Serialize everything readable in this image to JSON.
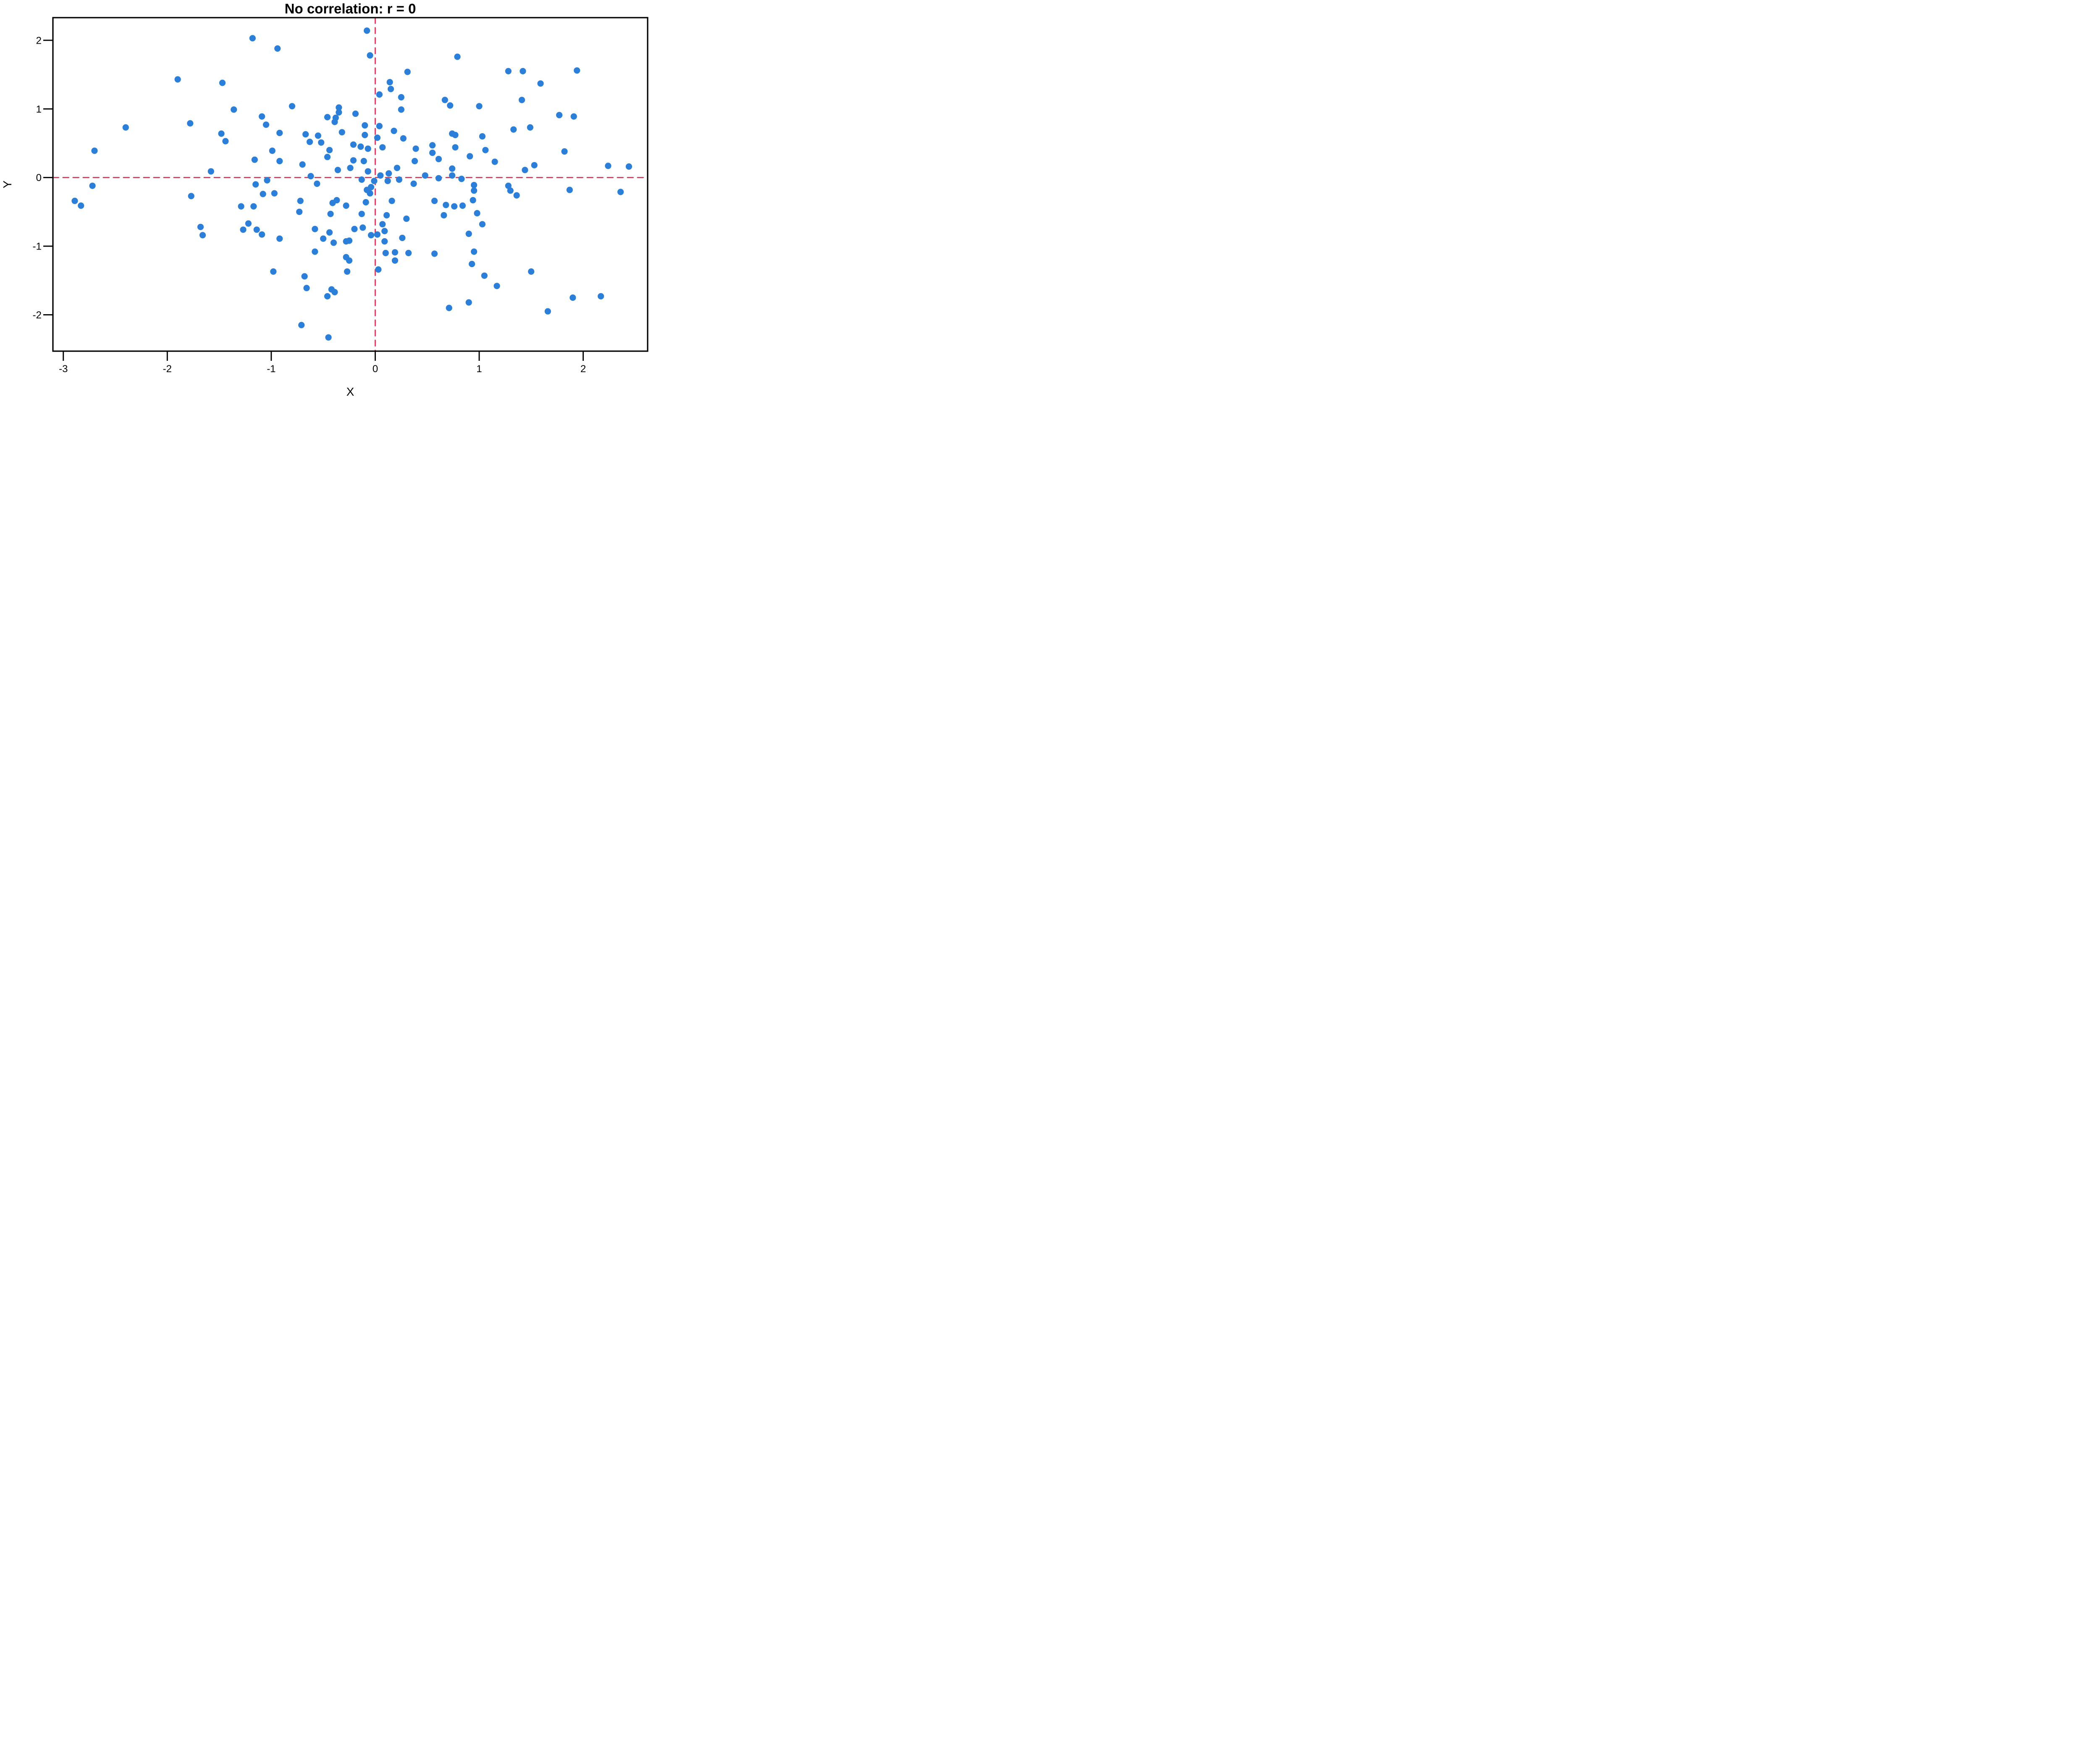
{
  "figure": {
    "background": "#ffffff",
    "text_color": "#000000"
  },
  "chart_data": {
    "type": "scatter",
    "title": "No correlation: r = 0",
    "xlabel": "X",
    "ylabel": "Y",
    "xlim": [
      -3.1,
      2.62
    ],
    "ylim": [
      -2.53,
      2.33
    ],
    "x_ticks": [
      -3,
      -2,
      -1,
      0,
      1,
      2
    ],
    "y_ticks": [
      2,
      1,
      0,
      -1,
      -2
    ],
    "grid": false,
    "legend": null,
    "point_color": "#2b7fd8",
    "point_radius": 7.6,
    "axis_color": "#000000",
    "reference_lines": {
      "vertical_x": 0,
      "horizontal_y": 0,
      "style": "dashed",
      "color": "#d93a5f"
    },
    "points": [
      [
        -1.18,
        2.03
      ],
      [
        -0.94,
        1.88
      ],
      [
        -1.9,
        1.43
      ],
      [
        -1.47,
        1.38
      ],
      [
        -2.4,
        0.73
      ],
      [
        -1.36,
        0.99
      ],
      [
        -1.78,
        0.79
      ],
      [
        -0.8,
        1.04
      ],
      [
        -1.09,
        0.89
      ],
      [
        -1.05,
        0.77
      ],
      [
        -0.92,
        0.65
      ],
      [
        -1.48,
        0.64
      ],
      [
        -1.44,
        0.53
      ],
      [
        -0.67,
        0.63
      ],
      [
        -0.63,
        0.52
      ],
      [
        -0.55,
        0.61
      ],
      [
        -0.52,
        0.51
      ],
      [
        -2.7,
        0.39
      ],
      [
        -0.99,
        0.39
      ],
      [
        -1.16,
        0.26
      ],
      [
        -0.92,
        0.24
      ],
      [
        -0.7,
        0.19
      ],
      [
        -0.62,
        0.02
      ],
      [
        -1.58,
        0.09
      ],
      [
        -1.04,
        -0.04
      ],
      [
        -1.15,
        -0.1
      ],
      [
        -2.72,
        -0.12
      ],
      [
        -1.08,
        -0.24
      ],
      [
        -0.97,
        -0.23
      ],
      [
        -1.77,
        -0.27
      ],
      [
        -0.72,
        -0.34
      ],
      [
        -2.89,
        -0.34
      ],
      [
        -0.56,
        -0.09
      ],
      [
        -0.08,
        2.14
      ],
      [
        -0.05,
        1.78
      ],
      [
        0.79,
        1.76
      ],
      [
        0.31,
        1.54
      ],
      [
        1.28,
        1.55
      ],
      [
        1.42,
        1.55
      ],
      [
        1.94,
        1.56
      ],
      [
        1.59,
        1.37
      ],
      [
        0.14,
        1.39
      ],
      [
        0.15,
        1.29
      ],
      [
        0.04,
        1.21
      ],
      [
        0.25,
        1.17
      ],
      [
        0.67,
        1.13
      ],
      [
        0.72,
        1.05
      ],
      [
        1.0,
        1.04
      ],
      [
        0.25,
        0.99
      ],
      [
        1.41,
        1.13
      ],
      [
        -0.35,
        1.02
      ],
      [
        -0.35,
        0.95
      ],
      [
        -0.38,
        0.87
      ],
      [
        -0.39,
        0.81
      ],
      [
        -0.19,
        0.93
      ],
      [
        -0.46,
        0.88
      ],
      [
        1.77,
        0.91
      ],
      [
        1.91,
        0.89
      ],
      [
        -0.1,
        0.76
      ],
      [
        0.04,
        0.75
      ],
      [
        -0.32,
        0.66
      ],
      [
        -0.1,
        0.62
      ],
      [
        0.18,
        0.68
      ],
      [
        0.02,
        0.58
      ],
      [
        0.27,
        0.57
      ],
      [
        1.33,
        0.7
      ],
      [
        1.49,
        0.73
      ],
      [
        0.74,
        0.64
      ],
      [
        0.77,
        0.62
      ],
      [
        1.03,
        0.6
      ],
      [
        -0.21,
        0.48
      ],
      [
        -0.14,
        0.45
      ],
      [
        -0.07,
        0.42
      ],
      [
        0.07,
        0.44
      ],
      [
        0.39,
        0.42
      ],
      [
        0.55,
        0.47
      ],
      [
        0.55,
        0.36
      ],
      [
        0.77,
        0.44
      ],
      [
        1.06,
        0.4
      ],
      [
        1.82,
        0.38
      ],
      [
        0.91,
        0.31
      ],
      [
        -0.44,
        0.4
      ],
      [
        -0.46,
        0.3
      ],
      [
        -0.21,
        0.25
      ],
      [
        -0.11,
        0.24
      ],
      [
        0.38,
        0.24
      ],
      [
        -0.24,
        0.14
      ],
      [
        -0.36,
        0.11
      ],
      [
        -0.07,
        0.09
      ],
      [
        0.13,
        0.06
      ],
      [
        0.21,
        0.14
      ],
      [
        1.15,
        0.23
      ],
      [
        1.53,
        0.18
      ],
      [
        1.44,
        0.11
      ],
      [
        2.24,
        0.17
      ],
      [
        2.44,
        0.16
      ],
      [
        0.74,
        0.13
      ],
      [
        0.05,
        0.03
      ],
      [
        0.48,
        0.03
      ],
      [
        0.74,
        0.03
      ],
      [
        0.83,
        -0.02
      ],
      [
        -0.01,
        -0.05
      ],
      [
        0.12,
        -0.05
      ],
      [
        0.23,
        -0.03
      ],
      [
        0.37,
        -0.09
      ],
      [
        -0.13,
        -0.03
      ],
      [
        -0.04,
        -0.14
      ],
      [
        -0.08,
        -0.18
      ],
      [
        -0.05,
        -0.23
      ],
      [
        0.95,
        -0.11
      ],
      [
        0.95,
        -0.19
      ],
      [
        1.28,
        -0.12
      ],
      [
        1.3,
        -0.19
      ],
      [
        1.36,
        -0.26
      ],
      [
        1.87,
        -0.18
      ],
      [
        2.36,
        -0.21
      ],
      [
        0.61,
        -0.01
      ],
      [
        0.61,
        0.27
      ],
      [
        -1.68,
        -0.72
      ],
      [
        -1.66,
        -0.84
      ],
      [
        -1.29,
        -0.42
      ],
      [
        -1.17,
        -0.42
      ],
      [
        -0.73,
        -0.5
      ],
      [
        -1.22,
        -0.67
      ],
      [
        -1.27,
        -0.76
      ],
      [
        -1.14,
        -0.76
      ],
      [
        -1.09,
        -0.83
      ],
      [
        -0.92,
        -0.89
      ],
      [
        -0.58,
        -0.75
      ],
      [
        -0.37,
        -0.33
      ],
      [
        -0.58,
        -1.08
      ],
      [
        -0.98,
        -1.37
      ],
      [
        -0.68,
        -1.44
      ],
      [
        -0.66,
        -1.61
      ],
      [
        -0.71,
        -2.15
      ],
      [
        -2.83,
        -0.41
      ],
      [
        -0.41,
        -0.37
      ],
      [
        -0.28,
        -0.41
      ],
      [
        -0.43,
        -0.53
      ],
      [
        -0.09,
        -0.36
      ],
      [
        0.16,
        -0.34
      ],
      [
        0.57,
        -0.34
      ],
      [
        0.68,
        -0.4
      ],
      [
        0.76,
        -0.42
      ],
      [
        0.84,
        -0.41
      ],
      [
        0.94,
        -0.33
      ],
      [
        -0.13,
        -0.53
      ],
      [
        0.11,
        -0.55
      ],
      [
        0.3,
        -0.6
      ],
      [
        0.66,
        -0.55
      ],
      [
        0.98,
        -0.52
      ],
      [
        1.03,
        -0.68
      ],
      [
        -0.12,
        -0.73
      ],
      [
        -0.2,
        -0.75
      ],
      [
        0.07,
        -0.68
      ],
      [
        -0.44,
        -0.8
      ],
      [
        -0.04,
        -0.84
      ],
      [
        0.02,
        -0.83
      ],
      [
        0.09,
        -0.78
      ],
      [
        0.09,
        -0.93
      ],
      [
        -0.25,
        -0.92
      ],
      [
        -0.28,
        -0.93
      ],
      [
        -0.4,
        -0.95
      ],
      [
        -0.5,
        -0.89
      ],
      [
        0.26,
        -0.88
      ],
      [
        0.9,
        -0.82
      ],
      [
        0.1,
        -1.1
      ],
      [
        0.19,
        -1.09
      ],
      [
        0.19,
        -1.21
      ],
      [
        0.32,
        -1.1
      ],
      [
        0.57,
        -1.11
      ],
      [
        -0.28,
        -1.16
      ],
      [
        -0.25,
        -1.21
      ],
      [
        -0.27,
        -1.37
      ],
      [
        0.03,
        -1.34
      ],
      [
        0.95,
        -1.08
      ],
      [
        0.93,
        -1.26
      ],
      [
        1.05,
        -1.43
      ],
      [
        1.17,
        -1.58
      ],
      [
        1.5,
        -1.37
      ],
      [
        1.9,
        -1.75
      ],
      [
        2.17,
        -1.73
      ],
      [
        0.9,
        -1.82
      ],
      [
        0.71,
        -1.9
      ],
      [
        1.66,
        -1.95
      ],
      [
        -0.42,
        -1.63
      ],
      [
        -0.39,
        -1.67
      ],
      [
        -0.46,
        -1.73
      ],
      [
        -0.45,
        -2.33
      ]
    ]
  }
}
